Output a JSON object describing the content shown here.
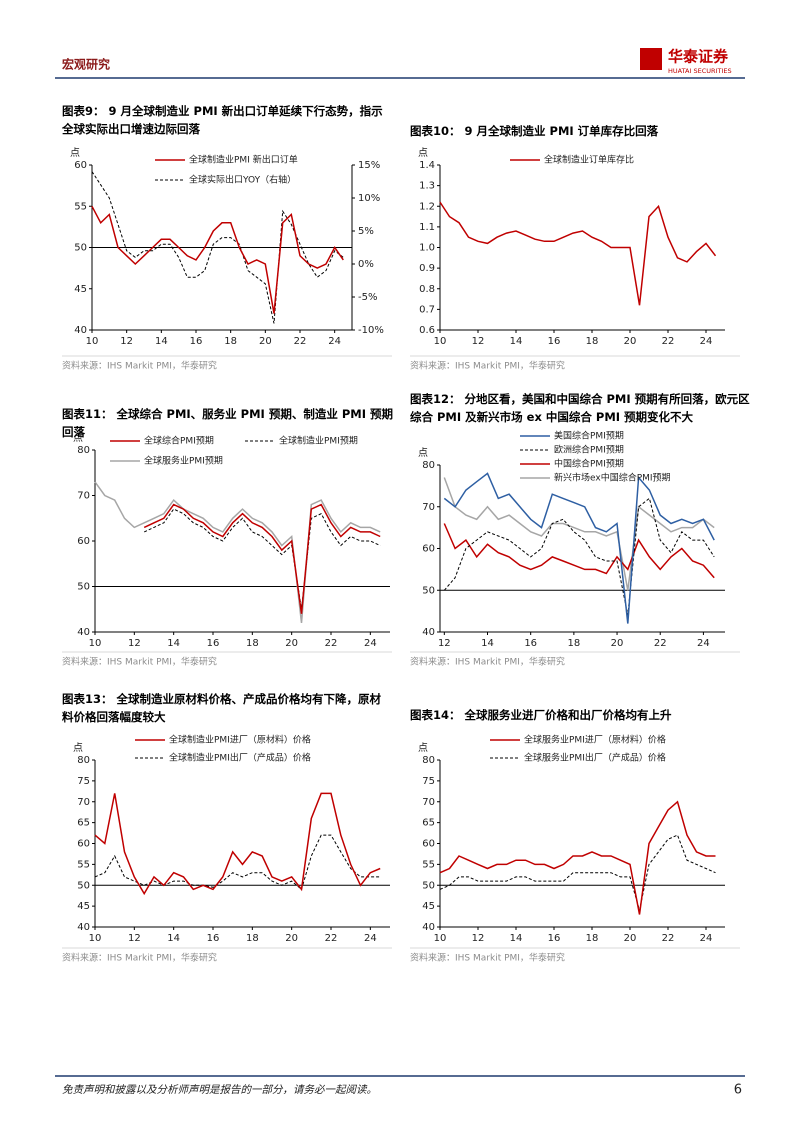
{
  "header": {
    "section": "宏观研究",
    "logo": "华泰证券",
    "logo_en": "HUATAI SECURITIES"
  },
  "footer": {
    "disclaimer": "免责声明和披露以及分析师声明是报告的一部分，请务必一起阅读。",
    "page": "6"
  },
  "chart_data": [
    {
      "type": "line",
      "title": "图表9：  9 月全球制造业 PMI 新出口订单延续下行态势，指示全球实际出口增速边际回落",
      "source": "资料来源：IHS Markit PMI，华泰研究",
      "y_unit": "点",
      "x": [
        10,
        10.5,
        11,
        11.5,
        12,
        12.5,
        13,
        13.5,
        14,
        14.5,
        15,
        15.5,
        16,
        16.5,
        17,
        17.5,
        18,
        18.5,
        19,
        19.5,
        20,
        20.5,
        21,
        21.5,
        22,
        22.5,
        23,
        23.5,
        24,
        24.5
      ],
      "xlim": [
        10,
        25
      ],
      "xticks": [
        10,
        12,
        14,
        16,
        18,
        20,
        22,
        24
      ],
      "ylim": [
        40,
        60
      ],
      "yticks": [
        40,
        45,
        50,
        55,
        60
      ],
      "y2lim": [
        -10,
        15
      ],
      "y2ticks": [
        {
          "value": -10,
          "label": "-10%"
        },
        {
          "value": -5,
          "label": "-5%"
        },
        {
          "value": 0,
          "label": "0%"
        },
        {
          "value": 5,
          "label": "5%"
        },
        {
          "value": 10,
          "label": "10%"
        },
        {
          "value": 15,
          "label": "15%"
        }
      ],
      "ref_line": 50,
      "series": [
        {
          "name": "全球制造业PMI 新出口订单",
          "color": "#c00000",
          "dash": false,
          "values": [
            55,
            53,
            54,
            50,
            49,
            48,
            49,
            50,
            51,
            51,
            50,
            49,
            48.5,
            50,
            52,
            53,
            53,
            50,
            48,
            48.5,
            48,
            42,
            53,
            54,
            49,
            48,
            47.5,
            48,
            50,
            48.5
          ]
        },
        {
          "name": "全球实际出口YOY（右轴）",
          "color": "#000000",
          "dash": true,
          "axis": "y2",
          "values": [
            14,
            12,
            10,
            6,
            2,
            1,
            2,
            2,
            3,
            3,
            1,
            -2,
            -2,
            -1,
            3,
            4,
            4,
            3,
            -1,
            -2,
            -3,
            -9,
            8,
            6,
            3,
            0,
            -2,
            -1,
            2,
            1
          ]
        }
      ]
    },
    {
      "type": "line",
      "title": "图表10：  9 月全球制造业 PMI 订单库存比回落",
      "source": "资料来源：IHS Markit PMI，华泰研究",
      "y_unit": "点",
      "x": [
        10,
        10.5,
        11,
        11.5,
        12,
        12.5,
        13,
        13.5,
        14,
        14.5,
        15,
        15.5,
        16,
        16.5,
        17,
        17.5,
        18,
        18.5,
        19,
        19.5,
        20,
        20.5,
        21,
        21.5,
        22,
        22.5,
        23,
        23.5,
        24,
        24.5
      ],
      "xlim": [
        10,
        25
      ],
      "xticks": [
        10,
        12,
        14,
        16,
        18,
        20,
        22,
        24
      ],
      "ylim": [
        0.6,
        1.4
      ],
      "yticks": [
        0.6,
        0.7,
        0.8,
        0.9,
        {
          "value": 1,
          "label": "1.0"
        },
        1.1,
        1.2,
        1.3,
        1.4
      ],
      "series": [
        {
          "name": "全球制造业订单库存比",
          "color": "#c00000",
          "dash": false,
          "values": [
            1.22,
            1.15,
            1.12,
            1.05,
            1.03,
            1.02,
            1.05,
            1.07,
            1.08,
            1.06,
            1.04,
            1.03,
            1.03,
            1.05,
            1.07,
            1.08,
            1.05,
            1.03,
            1.0,
            1.0,
            1.0,
            0.72,
            1.15,
            1.2,
            1.05,
            0.95,
            0.93,
            0.98,
            1.02,
            0.96
          ]
        }
      ]
    },
    {
      "type": "line",
      "title": "图表11：  全球综合 PMI、服务业 PMI 预期、制造业 PMI 预期回落",
      "source": "资料来源：IHS Markit PMI，华泰研究",
      "y_unit": "点",
      "x": [
        10,
        10.5,
        11,
        11.5,
        12,
        12.5,
        13,
        13.5,
        14,
        14.5,
        15,
        15.5,
        16,
        16.5,
        17,
        17.5,
        18,
        18.5,
        19,
        19.5,
        20,
        20.5,
        21,
        21.5,
        22,
        22.5,
        23,
        23.5,
        24,
        24.5
      ],
      "xlim": [
        10,
        25
      ],
      "xticks": [
        10,
        12,
        14,
        16,
        18,
        20,
        22,
        24
      ],
      "ylim": [
        40,
        80
      ],
      "yticks": [
        40,
        50,
        60,
        70,
        80
      ],
      "ref_line": 50,
      "series": [
        {
          "name": "全球综合PMI预期",
          "color": "#c00000",
          "dash": false,
          "values": [
            null,
            null,
            null,
            null,
            null,
            63,
            64,
            65,
            68,
            67,
            65,
            64,
            62,
            61,
            64,
            66,
            64,
            63,
            61,
            58,
            60,
            44,
            67,
            68,
            64,
            61,
            63,
            62,
            62,
            61
          ]
        },
        {
          "name": "全球制造业PMI预期",
          "color": "#000000",
          "dash": true,
          "values": [
            null,
            null,
            null,
            null,
            null,
            62,
            63,
            64,
            67,
            66,
            64,
            63,
            61,
            60,
            63,
            65,
            62,
            61,
            59,
            57,
            59,
            45,
            65,
            66,
            62,
            59,
            61,
            60,
            60,
            59
          ]
        },
        {
          "name": "全球服务业PMI预期",
          "color": "#a6a6a6",
          "dash": false,
          "values": [
            73,
            70,
            69,
            65,
            63,
            64,
            65,
            66,
            69,
            67,
            66,
            65,
            63,
            62,
            65,
            67,
            65,
            64,
            62,
            59,
            61,
            42,
            68,
            69,
            65,
            62,
            64,
            63,
            63,
            62
          ]
        }
      ]
    },
    {
      "type": "line",
      "title": "图表12：  分地区看，美国和中国综合 PMI 预期有所回落，欧元区综合 PMI 及新兴市场 ex 中国综合 PMI 预期变化不大",
      "source": "资料来源：IHS Markit PMI，华泰研究",
      "y_unit": "点",
      "x": [
        12,
        12.5,
        13,
        13.5,
        14,
        14.5,
        15,
        15.5,
        16,
        16.5,
        17,
        17.5,
        18,
        18.5,
        19,
        19.5,
        20,
        20.5,
        21,
        21.5,
        22,
        22.5,
        23,
        23.5,
        24,
        24.5
      ],
      "xlim": [
        11.8,
        25
      ],
      "xticks": [
        12,
        14,
        16,
        18,
        20,
        22,
        24
      ],
      "ylim": [
        40,
        80
      ],
      "yticks": [
        40,
        50,
        60,
        70,
        80
      ],
      "ref_line": 50,
      "series": [
        {
          "name": "美国综合PMI预期",
          "color": "#2e5fa3",
          "dash": false,
          "values": [
            72,
            70,
            74,
            76,
            78,
            72,
            73,
            70,
            67,
            65,
            73,
            72,
            71,
            70,
            65,
            64,
            66,
            42,
            77,
            74,
            68,
            66,
            67,
            66,
            67,
            62
          ]
        },
        {
          "name": "欧洲综合PMI预期",
          "color": "#000000",
          "dash": true,
          "values": [
            50,
            53,
            60,
            62,
            64,
            63,
            62,
            60,
            58,
            60,
            66,
            67,
            64,
            62,
            58,
            57,
            57,
            44,
            70,
            72,
            62,
            59,
            64,
            62,
            62,
            58
          ]
        },
        {
          "name": "中国综合PMI预期",
          "color": "#c00000",
          "dash": false,
          "values": [
            66,
            60,
            62,
            58,
            61,
            59,
            58,
            56,
            55,
            56,
            58,
            57,
            56,
            55,
            55,
            54,
            58,
            55,
            62,
            58,
            55,
            58,
            60,
            57,
            56,
            53
          ]
        },
        {
          "name": "新兴市场ex中国综合PMI预期",
          "color": "#a6a6a6",
          "dash": false,
          "values": [
            77,
            70,
            68,
            67,
            70,
            67,
            68,
            66,
            64,
            63,
            66,
            66,
            65,
            64,
            64,
            63,
            64,
            50,
            70,
            68,
            66,
            64,
            65,
            65,
            67,
            65
          ]
        }
      ]
    },
    {
      "type": "line",
      "title": "图表13：  全球制造业原材料价格、产成品价格均有下降，原材料价格回落幅度较大",
      "source": "资料来源：IHS Markit PMI，华泰研究",
      "y_unit": "点",
      "x": [
        10,
        10.5,
        11,
        11.5,
        12,
        12.5,
        13,
        13.5,
        14,
        14.5,
        15,
        15.5,
        16,
        16.5,
        17,
        17.5,
        18,
        18.5,
        19,
        19.5,
        20,
        20.5,
        21,
        21.5,
        22,
        22.5,
        23,
        23.5,
        24,
        24.5
      ],
      "xlim": [
        10,
        25
      ],
      "xticks": [
        10,
        12,
        14,
        16,
        18,
        20,
        22,
        24
      ],
      "ylim": [
        40,
        80
      ],
      "yticks": [
        40,
        45,
        50,
        55,
        60,
        65,
        70,
        75,
        80
      ],
      "ref_line": 50,
      "series": [
        {
          "name": "全球制造业PMI进厂（原材料）价格",
          "color": "#c00000",
          "dash": false,
          "values": [
            62,
            60,
            72,
            58,
            52,
            48,
            52,
            50,
            53,
            52,
            49,
            50,
            49,
            52,
            58,
            55,
            58,
            57,
            52,
            51,
            52,
            49,
            66,
            72,
            72,
            62,
            55,
            50,
            53,
            54
          ]
        },
        {
          "name": "全球制造业PMI出厂（产成品）价格",
          "color": "#000000",
          "dash": true,
          "values": [
            52,
            53,
            57,
            52,
            51,
            50,
            51,
            50,
            51,
            51,
            50,
            50,
            49.5,
            51,
            53,
            52,
            53,
            53,
            51,
            50,
            51,
            49,
            57,
            62,
            62,
            58,
            54,
            52,
            52,
            52
          ]
        }
      ]
    },
    {
      "type": "line",
      "title": "图表14：  全球服务业进厂价格和出厂价格均有上升",
      "source": "资料来源：IHS Markit PMI，华泰研究",
      "y_unit": "点",
      "x": [
        10,
        10.5,
        11,
        11.5,
        12,
        12.5,
        13,
        13.5,
        14,
        14.5,
        15,
        15.5,
        16,
        16.5,
        17,
        17.5,
        18,
        18.5,
        19,
        19.5,
        20,
        20.5,
        21,
        21.5,
        22,
        22.5,
        23,
        23.5,
        24,
        24.5
      ],
      "xlim": [
        10,
        25
      ],
      "xticks": [
        10,
        12,
        14,
        16,
        18,
        20,
        22,
        24
      ],
      "ylim": [
        40,
        80
      ],
      "yticks": [
        40,
        45,
        50,
        55,
        60,
        65,
        70,
        75,
        80
      ],
      "ref_line": 50,
      "series": [
        {
          "name": "全球服务业PMI进厂（原材料）价格",
          "color": "#c00000",
          "dash": false,
          "values": [
            53,
            54,
            57,
            56,
            55,
            54,
            55,
            55,
            56,
            56,
            55,
            55,
            54,
            55,
            57,
            57,
            58,
            57,
            57,
            56,
            55,
            43,
            60,
            64,
            68,
            70,
            62,
            58,
            57,
            57
          ]
        },
        {
          "name": "全球服务业PMI出厂（产成品）价格",
          "color": "#000000",
          "dash": true,
          "values": [
            49,
            50,
            52,
            52,
            51,
            51,
            51,
            51,
            52,
            52,
            51,
            51,
            51,
            51,
            53,
            53,
            53,
            53,
            53,
            52,
            52,
            44,
            55,
            58,
            61,
            62,
            56,
            55,
            54,
            53
          ]
        }
      ]
    }
  ]
}
